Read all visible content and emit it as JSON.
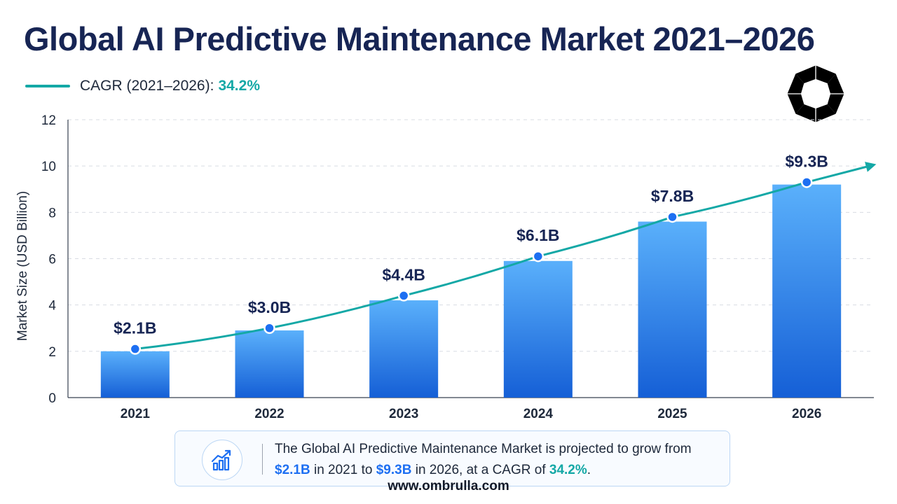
{
  "title": "Global AI Predictive Maintenance Market 2021–2026",
  "legend": {
    "label": "CAGR (2021–2026):",
    "value": "34.2%"
  },
  "logo_icon": "umbrella-logo-icon",
  "colors": {
    "bar": "#1d6ff2",
    "line": "#14a8a6",
    "title": "#172554",
    "accent_blue": "#1d6ff2",
    "accent_teal": "#14a8a6"
  },
  "chart_data": {
    "type": "bar",
    "title": "Global AI Predictive Maintenance Market 2021–2026",
    "xlabel": "",
    "ylabel": "Market Size (USD Billion)",
    "ylim": [
      0,
      12
    ],
    "yticks": [
      0,
      2,
      4,
      6,
      8,
      10,
      12
    ],
    "grid": true,
    "categories": [
      "2021",
      "2022",
      "2023",
      "2024",
      "2025",
      "2026"
    ],
    "series": [
      {
        "type": "bar",
        "values": [
          2.0,
          2.9,
          4.2,
          5.9,
          7.6,
          9.2
        ]
      },
      {
        "type": "line",
        "values": [
          2.1,
          3.0,
          4.4,
          6.1,
          7.8,
          9.3
        ]
      }
    ],
    "data_labels": [
      "$2.1B",
      "$3.0B",
      "$4.4B",
      "$6.1B",
      "$7.8B",
      "$9.3B"
    ]
  },
  "callout": {
    "icon": "growth-chart-icon",
    "text_1": "The Global AI Predictive Maintenance Market is projected to grow from ",
    "start_value": "$2.1B",
    "text_2": " in 2021 to ",
    "end_value": "$9.3B",
    "text_3": " in 2026, at a CAGR of ",
    "cagr": "34.2%",
    "text_4": "."
  },
  "footer": "www.ombrulla.com"
}
